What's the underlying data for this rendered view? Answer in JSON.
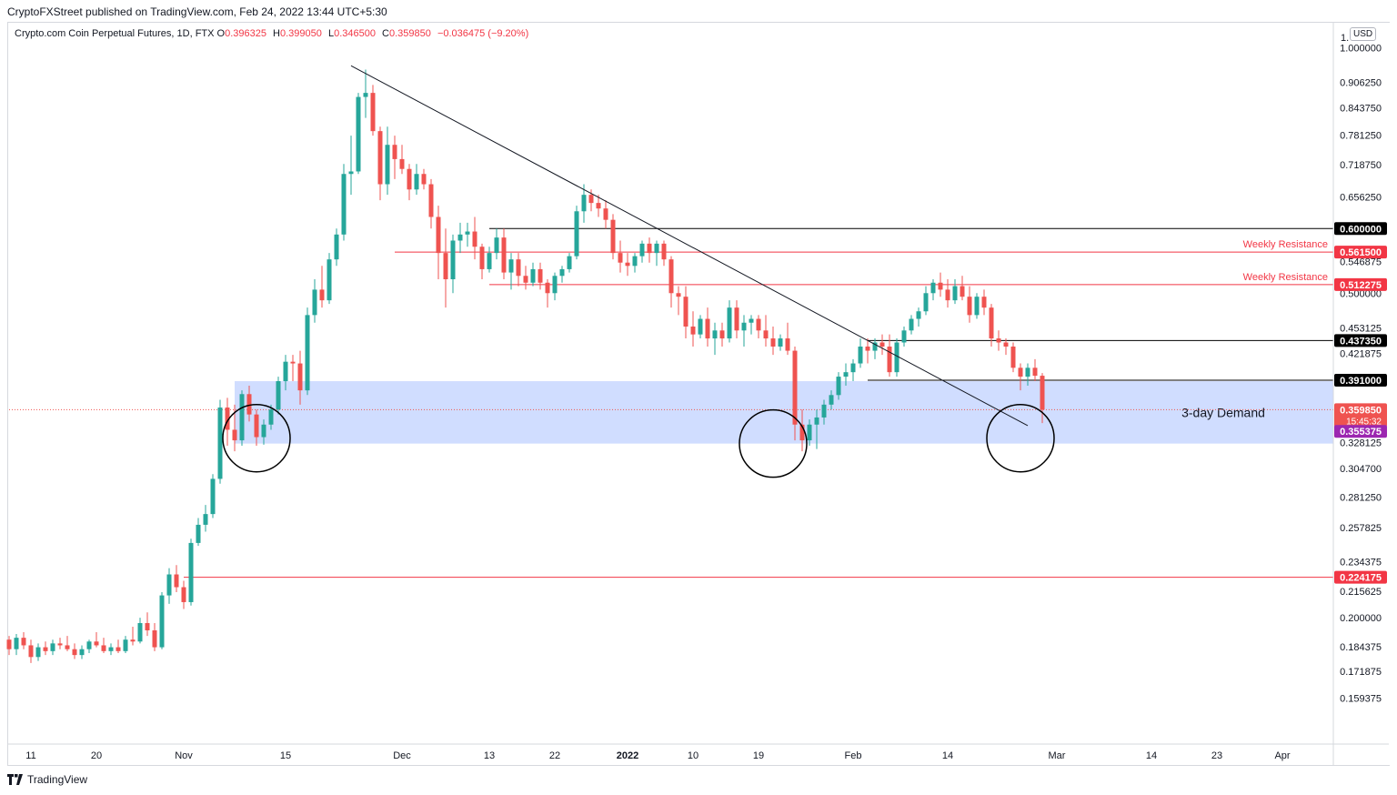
{
  "header": {
    "published": "CryptoFXStreet published on TradingView.com, Feb 24, 2022 13:44 UTC+5:30"
  },
  "legend": {
    "symbol": "Crypto.com Coin Perpetual Futures, 1D, FTX",
    "o_label": "O",
    "o_value": "0.396325",
    "h_label": "H",
    "h_value": "0.399050",
    "l_label": "L",
    "l_value": "0.346500",
    "c_label": "C",
    "c_value": "0.359850",
    "change": "−0.036475 (−9.20%)",
    "currency": "USD"
  },
  "footer": {
    "brand": "TradingView"
  },
  "colors": {
    "up": "#26a69a",
    "down": "#ef5350",
    "resistance": "#f23645",
    "level": "#000000",
    "demand": "#2962ff",
    "current": "#ef5350",
    "purple": "#9c27b0"
  },
  "chart_data": {
    "type": "candlestick",
    "y_scale": "log",
    "ylim": [
      0.14,
      1.07
    ],
    "y_ticks": [
      "0.159375",
      "0.171875",
      "0.184375",
      "0.200000",
      "0.215625",
      "0.234375",
      "0.257825",
      "0.281250",
      "0.304700",
      "0.328125",
      "0.421875",
      "0.453125",
      "0.500000",
      "0.546875",
      "0.656250",
      "0.718750",
      "0.781250",
      "0.843750",
      "0.906250",
      "1.000000"
    ],
    "y_ticks_top_partial": "1.",
    "x_ticks": [
      "11",
      "20",
      "Nov",
      "15",
      "Dec",
      "13",
      "22",
      "2022",
      "10",
      "19",
      "Feb",
      "14",
      "Mar",
      "14",
      "23",
      "Apr"
    ],
    "x_tick_dates": [
      "2021-10-11",
      "2021-10-20",
      "2021-11-01",
      "2021-11-15",
      "2021-12-01",
      "2021-12-13",
      "2021-12-22",
      "2022-01-01",
      "2022-01-10",
      "2022-01-19",
      "2022-02-01",
      "2022-02-14",
      "2022-03-01",
      "2022-03-14",
      "2022-03-23",
      "2022-04-01"
    ],
    "dates_start": "2021-10-08",
    "candles": [
      [
        0.188,
        0.19,
        0.18,
        0.183
      ],
      [
        0.183,
        0.191,
        0.18,
        0.189
      ],
      [
        0.189,
        0.192,
        0.183,
        0.185
      ],
      [
        0.185,
        0.188,
        0.176,
        0.179
      ],
      [
        0.179,
        0.186,
        0.177,
        0.184
      ],
      [
        0.184,
        0.187,
        0.18,
        0.182
      ],
      [
        0.182,
        0.188,
        0.18,
        0.186
      ],
      [
        0.186,
        0.189,
        0.183,
        0.185
      ],
      [
        0.185,
        0.19,
        0.182,
        0.183
      ],
      [
        0.183,
        0.186,
        0.178,
        0.18
      ],
      [
        0.18,
        0.185,
        0.178,
        0.183
      ],
      [
        0.183,
        0.188,
        0.181,
        0.187
      ],
      [
        0.187,
        0.192,
        0.184,
        0.185
      ],
      [
        0.185,
        0.189,
        0.181,
        0.182
      ],
      [
        0.182,
        0.186,
        0.18,
        0.184
      ],
      [
        0.184,
        0.188,
        0.181,
        0.182
      ],
      [
        0.182,
        0.19,
        0.181,
        0.188
      ],
      [
        0.188,
        0.195,
        0.185,
        0.187
      ],
      [
        0.187,
        0.2,
        0.186,
        0.197
      ],
      [
        0.197,
        0.203,
        0.19,
        0.193
      ],
      [
        0.193,
        0.197,
        0.182,
        0.184
      ],
      [
        0.184,
        0.215,
        0.183,
        0.213
      ],
      [
        0.213,
        0.23,
        0.208,
        0.226
      ],
      [
        0.226,
        0.232,
        0.215,
        0.218
      ],
      [
        0.218,
        0.222,
        0.205,
        0.209
      ],
      [
        0.209,
        0.25,
        0.207,
        0.247
      ],
      [
        0.247,
        0.265,
        0.245,
        0.26
      ],
      [
        0.26,
        0.275,
        0.255,
        0.268
      ],
      [
        0.268,
        0.3,
        0.265,
        0.296
      ],
      [
        0.296,
        0.37,
        0.292,
        0.362
      ],
      [
        0.362,
        0.372,
        0.325,
        0.34
      ],
      [
        0.34,
        0.365,
        0.32,
        0.33
      ],
      [
        0.33,
        0.38,
        0.325,
        0.376
      ],
      [
        0.376,
        0.385,
        0.348,
        0.355
      ],
      [
        0.355,
        0.36,
        0.325,
        0.333
      ],
      [
        0.333,
        0.35,
        0.326,
        0.345
      ],
      [
        0.345,
        0.365,
        0.34,
        0.36
      ],
      [
        0.36,
        0.395,
        0.355,
        0.39
      ],
      [
        0.39,
        0.42,
        0.38,
        0.412
      ],
      [
        0.412,
        0.42,
        0.39,
        0.41
      ],
      [
        0.41,
        0.425,
        0.365,
        0.38
      ],
      [
        0.38,
        0.48,
        0.375,
        0.47
      ],
      [
        0.47,
        0.52,
        0.46,
        0.505
      ],
      [
        0.505,
        0.54,
        0.48,
        0.49
      ],
      [
        0.49,
        0.56,
        0.485,
        0.55
      ],
      [
        0.55,
        0.6,
        0.54,
        0.59
      ],
      [
        0.59,
        0.72,
        0.58,
        0.7
      ],
      [
        0.7,
        0.78,
        0.66,
        0.705
      ],
      [
        0.705,
        0.88,
        0.7,
        0.87
      ],
      [
        0.87,
        0.94,
        0.82,
        0.88
      ],
      [
        0.88,
        0.9,
        0.78,
        0.79
      ],
      [
        0.79,
        0.8,
        0.65,
        0.68
      ],
      [
        0.68,
        0.8,
        0.66,
        0.76
      ],
      [
        0.76,
        0.78,
        0.69,
        0.73
      ],
      [
        0.73,
        0.76,
        0.7,
        0.71
      ],
      [
        0.71,
        0.72,
        0.65,
        0.67
      ],
      [
        0.67,
        0.72,
        0.66,
        0.7
      ],
      [
        0.7,
        0.71,
        0.67,
        0.68
      ],
      [
        0.68,
        0.69,
        0.6,
        0.62
      ],
      [
        0.62,
        0.64,
        0.52,
        0.56
      ],
      [
        0.56,
        0.6,
        0.48,
        0.52
      ],
      [
        0.52,
        0.59,
        0.5,
        0.58
      ],
      [
        0.58,
        0.61,
        0.56,
        0.59
      ],
      [
        0.59,
        0.61,
        0.57,
        0.595
      ],
      [
        0.595,
        0.62,
        0.55,
        0.57
      ],
      [
        0.57,
        0.575,
        0.52,
        0.535
      ],
      [
        0.535,
        0.57,
        0.53,
        0.56
      ],
      [
        0.56,
        0.6,
        0.55,
        0.585
      ],
      [
        0.585,
        0.6,
        0.52,
        0.53
      ],
      [
        0.53,
        0.56,
        0.505,
        0.55
      ],
      [
        0.55,
        0.56,
        0.51,
        0.525
      ],
      [
        0.525,
        0.54,
        0.505,
        0.515
      ],
      [
        0.515,
        0.545,
        0.51,
        0.535
      ],
      [
        0.535,
        0.545,
        0.505,
        0.515
      ],
      [
        0.515,
        0.52,
        0.48,
        0.5
      ],
      [
        0.5,
        0.53,
        0.49,
        0.525
      ],
      [
        0.525,
        0.54,
        0.515,
        0.535
      ],
      [
        0.535,
        0.56,
        0.53,
        0.555
      ],
      [
        0.555,
        0.64,
        0.55,
        0.63
      ],
      [
        0.63,
        0.68,
        0.61,
        0.66
      ],
      [
        0.66,
        0.67,
        0.63,
        0.645
      ],
      [
        0.645,
        0.66,
        0.62,
        0.635
      ],
      [
        0.635,
        0.65,
        0.6,
        0.615
      ],
      [
        0.615,
        0.625,
        0.55,
        0.56
      ],
      [
        0.56,
        0.58,
        0.53,
        0.545
      ],
      [
        0.545,
        0.56,
        0.525,
        0.54
      ],
      [
        0.54,
        0.56,
        0.53,
        0.555
      ],
      [
        0.555,
        0.58,
        0.545,
        0.575
      ],
      [
        0.575,
        0.585,
        0.545,
        0.56
      ],
      [
        0.56,
        0.58,
        0.54,
        0.575
      ],
      [
        0.575,
        0.58,
        0.54,
        0.55
      ],
      [
        0.55,
        0.555,
        0.48,
        0.5
      ],
      [
        0.5,
        0.51,
        0.47,
        0.495
      ],
      [
        0.495,
        0.51,
        0.44,
        0.455
      ],
      [
        0.455,
        0.475,
        0.43,
        0.445
      ],
      [
        0.445,
        0.47,
        0.44,
        0.465
      ],
      [
        0.465,
        0.48,
        0.43,
        0.44
      ],
      [
        0.44,
        0.46,
        0.42,
        0.45
      ],
      [
        0.45,
        0.46,
        0.43,
        0.44
      ],
      [
        0.44,
        0.49,
        0.435,
        0.48
      ],
      [
        0.48,
        0.49,
        0.44,
        0.45
      ],
      [
        0.45,
        0.47,
        0.43,
        0.46
      ],
      [
        0.46,
        0.47,
        0.445,
        0.465
      ],
      [
        0.465,
        0.47,
        0.44,
        0.45
      ],
      [
        0.45,
        0.47,
        0.43,
        0.44
      ],
      [
        0.44,
        0.455,
        0.42,
        0.43
      ],
      [
        0.43,
        0.445,
        0.425,
        0.44
      ],
      [
        0.44,
        0.46,
        0.42,
        0.425
      ],
      [
        0.425,
        0.43,
        0.33,
        0.345
      ],
      [
        0.345,
        0.36,
        0.32,
        0.33
      ],
      [
        0.33,
        0.35,
        0.325,
        0.345
      ],
      [
        0.345,
        0.36,
        0.322,
        0.352
      ],
      [
        0.352,
        0.37,
        0.345,
        0.365
      ],
      [
        0.365,
        0.38,
        0.36,
        0.375
      ],
      [
        0.375,
        0.4,
        0.37,
        0.395
      ],
      [
        0.395,
        0.41,
        0.385,
        0.4
      ],
      [
        0.4,
        0.415,
        0.39,
        0.41
      ],
      [
        0.41,
        0.44,
        0.405,
        0.43
      ],
      [
        0.43,
        0.44,
        0.41,
        0.425
      ],
      [
        0.425,
        0.44,
        0.415,
        0.435
      ],
      [
        0.435,
        0.445,
        0.42,
        0.43
      ],
      [
        0.43,
        0.445,
        0.395,
        0.4
      ],
      [
        0.4,
        0.44,
        0.395,
        0.435
      ],
      [
        0.435,
        0.455,
        0.43,
        0.45
      ],
      [
        0.45,
        0.47,
        0.445,
        0.465
      ],
      [
        0.465,
        0.48,
        0.455,
        0.475
      ],
      [
        0.475,
        0.51,
        0.47,
        0.5
      ],
      [
        0.5,
        0.52,
        0.49,
        0.515
      ],
      [
        0.515,
        0.53,
        0.495,
        0.505
      ],
      [
        0.505,
        0.52,
        0.48,
        0.49
      ],
      [
        0.49,
        0.52,
        0.485,
        0.51
      ],
      [
        0.51,
        0.525,
        0.49,
        0.495
      ],
      [
        0.495,
        0.51,
        0.46,
        0.47
      ],
      [
        0.47,
        0.5,
        0.465,
        0.495
      ],
      [
        0.495,
        0.505,
        0.47,
        0.48
      ],
      [
        0.48,
        0.485,
        0.43,
        0.44
      ],
      [
        0.44,
        0.45,
        0.425,
        0.435
      ],
      [
        0.435,
        0.44,
        0.42,
        0.43
      ],
      [
        0.43,
        0.435,
        0.4,
        0.405
      ],
      [
        0.405,
        0.41,
        0.38,
        0.395
      ],
      [
        0.395,
        0.41,
        0.385,
        0.405
      ],
      [
        0.405,
        0.415,
        0.39,
        0.396
      ],
      [
        0.396,
        0.399,
        0.3465,
        0.35985
      ]
    ],
    "horizontal_levels": [
      {
        "price": 0.6,
        "label": "0.600000",
        "color": "#000000",
        "x_start": "2021-12-13"
      },
      {
        "price": 0.5615,
        "label": "0.561500",
        "color": "#f23645",
        "x_start": "2021-11-30",
        "annotation": "Weekly Resistance"
      },
      {
        "price": 0.512275,
        "label": "0.512275",
        "color": "#f23645",
        "x_start": "2021-12-13",
        "annotation": "Weekly Resistance"
      },
      {
        "price": 0.43735,
        "label": "0.437350",
        "color": "#000000",
        "x_start": "2022-02-03"
      },
      {
        "price": 0.391,
        "label": "0.391000",
        "color": "#000000",
        "x_start": "2022-02-03"
      },
      {
        "price": 0.224175,
        "label": "0.224175",
        "color": "#f23645",
        "x_start": "2021-11-01"
      }
    ],
    "price_labels": [
      {
        "price": 0.35985,
        "label": "0.359850",
        "sub": "15:45:32",
        "color": "#ef5350"
      },
      {
        "price": 0.355375,
        "label": "0.355375",
        "color": "#9c27b0"
      }
    ],
    "demand_zone": {
      "top": 0.39,
      "bottom": 0.327,
      "x_start": "2021-11-08",
      "label": "3-day Demand"
    },
    "trendline": {
      "from": {
        "date": "2021-11-24",
        "price": 0.95
      },
      "to": {
        "date": "2022-02-25",
        "price": 0.344
      }
    },
    "circles": [
      {
        "date": "2021-11-11",
        "price": 0.332
      },
      {
        "date": "2022-01-21",
        "price": 0.327
      },
      {
        "date": "2022-02-24",
        "price": 0.332
      }
    ]
  }
}
